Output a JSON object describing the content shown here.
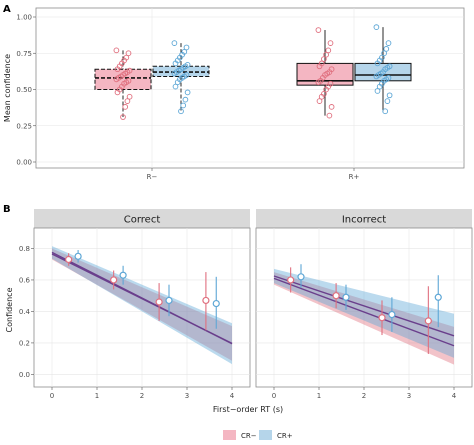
{
  "colors": {
    "cr_minus": "#e0707f",
    "cr_plus": "#5ea7d6",
    "cr_minus_fill": "#f4b6c2",
    "cr_plus_fill": "#b5d5ea",
    "fit_line": "#6a3f8c",
    "strip_bg": "#d9d9d9",
    "grid": "#e6e6e6",
    "panel_border": "#8c8c8c"
  },
  "chart_data": [
    {
      "id": "A",
      "type": "box",
      "panel_label": "A",
      "ylabel": "Mean confidence",
      "xlabel": "",
      "categories": [
        "R−",
        "R+"
      ],
      "ylim": [
        0,
        1
      ],
      "yticks": [
        "0.00",
        "0.25",
        "0.50",
        "0.75",
        "1.00"
      ],
      "ytick_values": [
        0,
        0.25,
        0.5,
        0.75,
        1.0
      ],
      "grid": true,
      "series": [
        {
          "name": "CR−",
          "boxes": [
            {
              "category": "R−",
              "min": 0.31,
              "q1": 0.5,
              "median": 0.58,
              "q3": 0.64,
              "max": 0.77,
              "dashed": true,
              "points": [
                0.77,
                0.75,
                0.72,
                0.7,
                0.68,
                0.66,
                0.64,
                0.63,
                0.62,
                0.61,
                0.6,
                0.59,
                0.58,
                0.57,
                0.56,
                0.55,
                0.54,
                0.52,
                0.5,
                0.48,
                0.45,
                0.42,
                0.38,
                0.31
              ]
            },
            {
              "category": "R+",
              "min": 0.32,
              "q1": 0.53,
              "median": 0.56,
              "q3": 0.68,
              "max": 0.91,
              "dashed": false,
              "points": [
                0.91,
                0.82,
                0.77,
                0.74,
                0.71,
                0.68,
                0.66,
                0.64,
                0.62,
                0.61,
                0.6,
                0.58,
                0.56,
                0.55,
                0.54,
                0.52,
                0.5,
                0.47,
                0.45,
                0.42,
                0.38,
                0.32
              ]
            }
          ]
        },
        {
          "name": "CR+",
          "boxes": [
            {
              "category": "R−",
              "min": 0.35,
              "q1": 0.59,
              "median": 0.62,
              "q3": 0.66,
              "max": 0.82,
              "dashed": true,
              "points": [
                0.82,
                0.79,
                0.76,
                0.74,
                0.72,
                0.7,
                0.68,
                0.67,
                0.66,
                0.65,
                0.64,
                0.63,
                0.62,
                0.61,
                0.6,
                0.59,
                0.58,
                0.57,
                0.55,
                0.52,
                0.48,
                0.43,
                0.39,
                0.35
              ]
            },
            {
              "category": "R+",
              "min": 0.35,
              "q1": 0.56,
              "median": 0.6,
              "q3": 0.68,
              "max": 0.93,
              "dashed": false,
              "points": [
                0.93,
                0.82,
                0.78,
                0.75,
                0.72,
                0.7,
                0.68,
                0.66,
                0.65,
                0.64,
                0.62,
                0.61,
                0.6,
                0.59,
                0.58,
                0.57,
                0.56,
                0.54,
                0.52,
                0.49,
                0.46,
                0.42,
                0.35
              ]
            }
          ]
        }
      ]
    },
    {
      "id": "B",
      "type": "scatter",
      "panel_label": "B",
      "ylabel": "Confidence",
      "xlabel": "First−order RT (s)",
      "xlim": [
        -0.4,
        4.4
      ],
      "ylim": [
        -0.08,
        0.93
      ],
      "xticks": [
        "0",
        "1",
        "2",
        "3",
        "4"
      ],
      "xtick_values": [
        0,
        1,
        2,
        3,
        4
      ],
      "yticks": [
        "0.0",
        "0.2",
        "0.4",
        "0.6",
        "0.8"
      ],
      "ytick_values": [
        0,
        0.2,
        0.4,
        0.6,
        0.8
      ],
      "grid": true,
      "panels": [
        {
          "strip": "Correct",
          "fits": [
            {
              "name": "CR−",
              "intercept": 0.765,
              "slope": -0.142,
              "band": [
                [
                  0,
                  0.035
                ],
                [
                  4,
                  0.11
                ]
              ]
            },
            {
              "name": "CR+",
              "intercept": 0.775,
              "slope": -0.145,
              "band": [
                [
                  0,
                  0.04
                ],
                [
                  4,
                  0.13
                ]
              ]
            }
          ],
          "series": [
            {
              "name": "CR−",
              "points": [
                {
                  "x": 0.37,
                  "y": 0.73,
                  "lo": 0.69,
                  "hi": 0.77
                },
                {
                  "x": 1.37,
                  "y": 0.6,
                  "lo": 0.54,
                  "hi": 0.66
                },
                {
                  "x": 2.38,
                  "y": 0.46,
                  "lo": 0.34,
                  "hi": 0.58
                },
                {
                  "x": 3.42,
                  "y": 0.47,
                  "lo": 0.28,
                  "hi": 0.65
                }
              ]
            },
            {
              "name": "CR+",
              "points": [
                {
                  "x": 0.58,
                  "y": 0.75,
                  "lo": 0.71,
                  "hi": 0.79
                },
                {
                  "x": 1.58,
                  "y": 0.63,
                  "lo": 0.57,
                  "hi": 0.69
                },
                {
                  "x": 2.6,
                  "y": 0.47,
                  "lo": 0.37,
                  "hi": 0.57
                },
                {
                  "x": 3.65,
                  "y": 0.45,
                  "lo": 0.29,
                  "hi": 0.62
                }
              ]
            }
          ]
        },
        {
          "strip": "Incorrect",
          "fits": [
            {
              "name": "CR−",
              "intercept": 0.61,
              "slope": -0.107,
              "band": [
                [
                  0,
                  0.04
                ],
                [
                  4,
                  0.12
                ]
              ]
            },
            {
              "name": "CR+",
              "intercept": 0.625,
              "slope": -0.095,
              "band": [
                [
                  0,
                  0.045
                ],
                [
                  4,
                  0.14
                ]
              ]
            }
          ],
          "series": [
            {
              "name": "CR−",
              "points": [
                {
                  "x": 0.37,
                  "y": 0.6,
                  "lo": 0.52,
                  "hi": 0.68
                },
                {
                  "x": 1.38,
                  "y": 0.5,
                  "lo": 0.42,
                  "hi": 0.58
                },
                {
                  "x": 2.4,
                  "y": 0.36,
                  "lo": 0.25,
                  "hi": 0.47
                },
                {
                  "x": 3.43,
                  "y": 0.34,
                  "lo": 0.13,
                  "hi": 0.56
                }
              ]
            },
            {
              "name": "CR+",
              "points": [
                {
                  "x": 0.6,
                  "y": 0.62,
                  "lo": 0.55,
                  "hi": 0.7
                },
                {
                  "x": 1.6,
                  "y": 0.49,
                  "lo": 0.41,
                  "hi": 0.57
                },
                {
                  "x": 2.62,
                  "y": 0.38,
                  "lo": 0.27,
                  "hi": 0.49
                },
                {
                  "x": 3.65,
                  "y": 0.49,
                  "lo": 0.3,
                  "hi": 0.63
                }
              ]
            }
          ]
        }
      ]
    }
  ],
  "legend": {
    "items": [
      "CR−",
      "CR+"
    ],
    "placement": "bottom"
  }
}
